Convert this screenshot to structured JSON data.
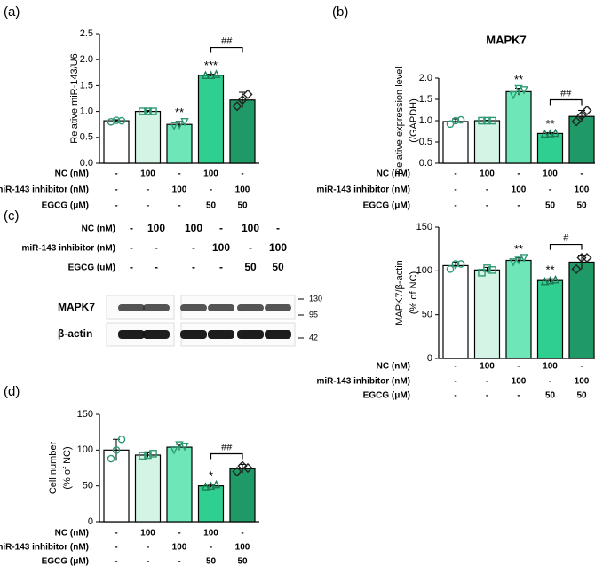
{
  "chart_data": [
    {
      "type": "bar",
      "panel": "(a)",
      "ylabel": "Relative miR-143/U6",
      "categories": [
        null,
        null,
        null,
        null,
        null
      ],
      "values": [
        0.82,
        1.0,
        0.75,
        1.7,
        1.22
      ],
      "errors": [
        0.02,
        0.02,
        0.06,
        0.02,
        0.15
      ],
      "points": [
        [
          0.8,
          0.83,
          0.82
        ],
        [
          1.0,
          1.0,
          1.0
        ],
        [
          0.72,
          0.74,
          0.8
        ],
        [
          1.7,
          1.7,
          1.72
        ],
        [
          1.1,
          1.22,
          1.33
        ]
      ],
      "colors": [
        "#ffffff",
        "#d4f5e6",
        "#6ee6b8",
        "#2fd08f",
        "#1f9a66"
      ],
      "point_colors": [
        "#2e9a72",
        "#2e9a72",
        "#2e9a72",
        "#1f7a55",
        "#222222"
      ],
      "sig": [
        null,
        null,
        "**",
        "***",
        null
      ],
      "bracket_label": "##",
      "ylim": [
        0,
        2.5
      ],
      "yticks": [
        {
          "value": 0,
          "label": "0.0"
        },
        0.5,
        {
          "value": 1,
          "label": "1.0"
        },
        1.5,
        {
          "value": 2,
          "label": "2.0"
        },
        2.5
      ],
      "conditions": [
        {
          "label": "NC (nM)",
          "values": [
            "-",
            "100",
            "-",
            "100",
            "-"
          ]
        },
        {
          "label": "miR-143 inhibitor (nM)",
          "values": [
            "-",
            "-",
            "100",
            "-",
            "100"
          ]
        },
        {
          "label": "EGCG (μM)",
          "values": [
            "-",
            "-",
            "-",
            "50",
            "50"
          ]
        }
      ]
    },
    {
      "type": "bar",
      "panel": "(b)",
      "title": "MAPK7",
      "ylabel": [
        "Relative expression level",
        "(/GAPDH)"
      ],
      "categories": [
        null,
        null,
        null,
        null,
        null
      ],
      "values": [
        0.98,
        1.0,
        1.68,
        0.7,
        1.1
      ],
      "errors": [
        0.06,
        0.01,
        0.08,
        0.02,
        0.14
      ],
      "points": [
        [
          0.92,
          1.0,
          1.02
        ],
        [
          1.0,
          1.0,
          1.0
        ],
        [
          1.6,
          1.75,
          1.72
        ],
        [
          0.69,
          0.7,
          0.71
        ],
        [
          0.98,
          1.12,
          1.24
        ]
      ],
      "colors": [
        "#ffffff",
        "#d4f5e6",
        "#6ee6b8",
        "#2fd08f",
        "#1f9a66"
      ],
      "point_colors": [
        "#2e9a72",
        "#2e9a72",
        "#2e9a72",
        "#1f7a55",
        "#222222"
      ],
      "sig": [
        null,
        null,
        "**",
        "**",
        null
      ],
      "bracket_label": "##",
      "ylim": [
        0,
        2.0
      ],
      "yticks": [
        {
          "value": 0,
          "label": "0.0"
        },
        0.5,
        {
          "value": 1,
          "label": "1.0"
        },
        1.5,
        {
          "value": 2,
          "label": "2.0"
        }
      ],
      "conditions": [
        {
          "label": "NC (nM)",
          "values": [
            "-",
            "100",
            "-",
            "100",
            "-"
          ]
        },
        {
          "label": "miR-143 inhibitor (nM)",
          "values": [
            "-",
            "-",
            "100",
            "-",
            "100"
          ]
        },
        {
          "label": "EGCG (μM)",
          "values": [
            "-",
            "-",
            "-",
            "50",
            "50"
          ]
        }
      ]
    },
    {
      "type": "bar",
      "ylabel": [
        "MAPK7/β-actin",
        "(% of NC)"
      ],
      "categories": [
        null,
        null,
        null,
        null,
        null
      ],
      "values": [
        106,
        101,
        112,
        89,
        110
      ],
      "errors": [
        4,
        3,
        3,
        2,
        8
      ],
      "points": [
        [
          102,
          108,
          108
        ],
        [
          98,
          103,
          101
        ],
        [
          110,
          112,
          115
        ],
        [
          88,
          89,
          90
        ],
        [
          102,
          115,
          115
        ]
      ],
      "colors": [
        "#ffffff",
        "#d4f5e6",
        "#6ee6b8",
        "#2fd08f",
        "#1f9a66"
      ],
      "point_colors": [
        "#2e9a72",
        "#2e9a72",
        "#2e9a72",
        "#1f7a55",
        "#222222"
      ],
      "sig": [
        null,
        null,
        "**",
        "**",
        null
      ],
      "bracket_label": "#",
      "ylim": [
        0,
        150
      ],
      "yticks": [
        0,
        50,
        100,
        150
      ],
      "conditions": [
        {
          "label": "NC (nM)",
          "values": [
            "-",
            "100",
            "-",
            "100",
            "-"
          ]
        },
        {
          "label": "miR-143 inhibitor (nM)",
          "values": [
            "-",
            "-",
            "100",
            "-",
            "100"
          ]
        },
        {
          "label": "EGCG (μM)",
          "values": [
            "-",
            "-",
            "-",
            "50",
            "50"
          ]
        }
      ]
    },
    {
      "type": "bar",
      "panel": "(d)",
      "ylabel": [
        "Cell number",
        "(% of NC)"
      ],
      "categories": [
        null,
        null,
        null,
        null,
        null
      ],
      "values": [
        100,
        93,
        104,
        50,
        74
      ],
      "errors": [
        15,
        3,
        4,
        2,
        6
      ],
      "points": [
        [
          88,
          100,
          115
        ],
        [
          92,
          93,
          95
        ],
        [
          100,
          107,
          105
        ],
        [
          49,
          50,
          52
        ],
        [
          70,
          78,
          75
        ]
      ],
      "colors": [
        "#ffffff",
        "#d4f5e6",
        "#6ee6b8",
        "#2fd08f",
        "#1f9a66"
      ],
      "point_colors": [
        "#2e9a72",
        "#2e9a72",
        "#2e9a72",
        "#1f7a55",
        "#222222"
      ],
      "sig": [
        null,
        null,
        null,
        "*",
        null
      ],
      "bracket_label": "##",
      "ylim": [
        0,
        150
      ],
      "yticks": [
        0,
        50,
        100,
        150
      ],
      "conditions": [
        {
          "label": "NC (nM)",
          "values": [
            "-",
            "100",
            "-",
            "100",
            "-"
          ]
        },
        {
          "label": "miR-143 inhibitor (nM)",
          "values": [
            "-",
            "-",
            "100",
            "-",
            "100"
          ]
        },
        {
          "label": "EGCG (μM)",
          "values": [
            "-",
            "-",
            "-",
            "50",
            "50"
          ]
        }
      ]
    }
  ],
  "blot": {
    "panel": "(c)",
    "conditions": [
      {
        "label": "NC (nM)",
        "values": [
          "-",
          "100",
          "100",
          "-",
          "100",
          "-"
        ]
      },
      {
        "label": "miR-143 inhibitor (nM)",
        "values": [
          "-",
          "-",
          "-",
          "100",
          "-",
          "100"
        ]
      },
      {
        "label": "EGCG (uM)",
        "values": [
          "-",
          "-",
          "-",
          "-",
          "50",
          "50"
        ]
      }
    ],
    "rows": [
      "MAPK7",
      "β-actin"
    ],
    "markers": [
      "130",
      "95",
      "42"
    ]
  }
}
